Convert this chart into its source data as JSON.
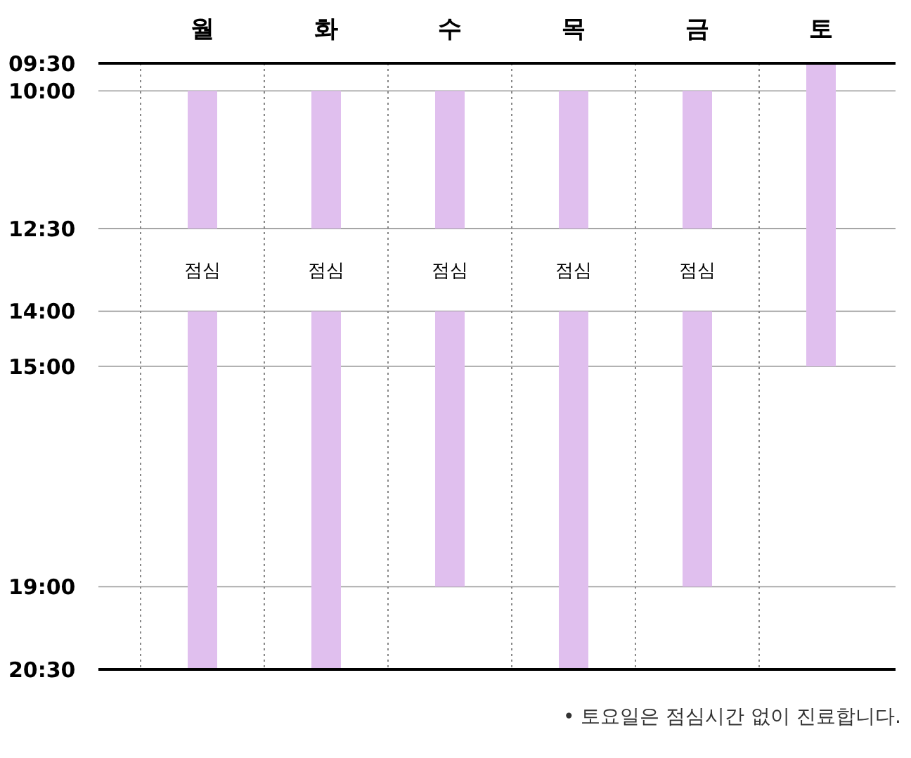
{
  "chart_data": {
    "type": "bar",
    "categories": [
      "월",
      "화",
      "수",
      "목",
      "금",
      "토"
    ],
    "series": [
      {
        "color": "#e0bfee",
        "base": [
          10,
          10,
          10,
          10,
          10,
          9.5
        ],
        "values": [
          2.5,
          2.5,
          2.5,
          2.5,
          2.5,
          5.5
        ]
      },
      {
        "color": "#e0bfee",
        "base": [
          14,
          14,
          14,
          14,
          14,
          null
        ],
        "values": [
          6.5,
          6.5,
          5,
          6.5,
          5,
          null
        ]
      }
    ],
    "ylim": [
      20.5,
      9.5
    ],
    "yticks": [
      {
        "value": 9.5,
        "label": "09:30"
      },
      {
        "value": 10,
        "label": "10:00"
      },
      {
        "value": 12.5,
        "label": "12:30"
      },
      {
        "value": 14,
        "label": "14:00"
      },
      {
        "value": 15,
        "label": "15:00"
      },
      {
        "value": 19,
        "label": "19:00"
      },
      {
        "value": 20.5,
        "label": "20:30"
      }
    ],
    "grid": true,
    "annotations": [
      "점심",
      "점심",
      "점심",
      "점심",
      "점심",
      "• 토요일은 점심시간 없이 진료합니다."
    ]
  }
}
